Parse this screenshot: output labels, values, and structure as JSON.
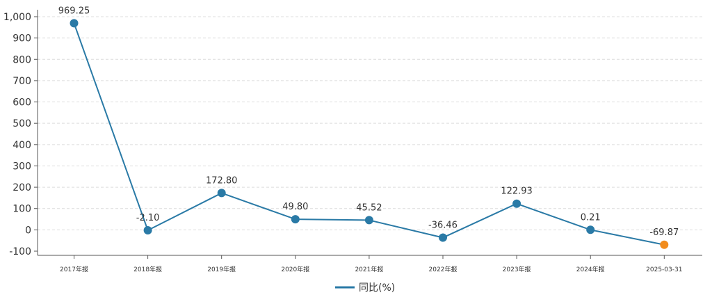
{
  "chart_data": {
    "type": "line",
    "categories": [
      "2017年报",
      "2018年报",
      "2019年报",
      "2020年报",
      "2021年报",
      "2022年报",
      "2023年报",
      "2024年报",
      "2025-03-31"
    ],
    "series": [
      {
        "name": "同比(%)",
        "values": [
          969.25,
          -2.1,
          172.8,
          49.8,
          45.52,
          -36.46,
          122.93,
          0.21,
          -69.87
        ],
        "labels": [
          "969.25",
          "-2.10",
          "172.80",
          "49.80",
          "45.52",
          "-36.46",
          "122.93",
          "0.21",
          "-69.87"
        ],
        "color": "#2a7aa6",
        "last_point_color": "#f28c1c"
      }
    ],
    "yticks": [
      "1,000",
      "900",
      "800",
      "700",
      "600",
      "500",
      "400",
      "300",
      "200",
      "100",
      "0",
      "-100"
    ],
    "ytick_values": [
      1000,
      900,
      800,
      700,
      600,
      500,
      400,
      300,
      200,
      100,
      0,
      -100
    ],
    "ylim": [
      -100,
      1000
    ],
    "grid": true,
    "legend": "bottom-center"
  }
}
